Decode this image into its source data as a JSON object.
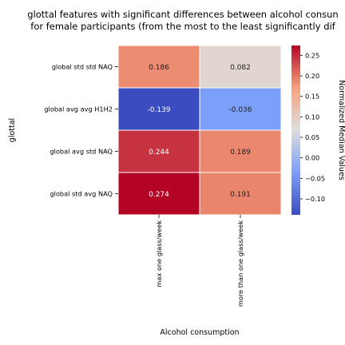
{
  "chart_data": {
    "type": "heatmap",
    "title_lines": [
      "glottal features with significant differences between alcohol consun",
      "for female participants (from the most to the least significantly dif"
    ],
    "xlabel": "Alcohol consumption",
    "ylabel": "glottal",
    "x_categories": [
      "max one glass/week",
      "more than one glass/week"
    ],
    "y_categories": [
      "global std std NAQ",
      "global avg avg H1H2",
      "global avg std NAQ",
      "global std avg NAQ"
    ],
    "values": [
      [
        0.186,
        0.082
      ],
      [
        -0.139,
        -0.036
      ],
      [
        0.244,
        0.189
      ],
      [
        0.274,
        0.191
      ]
    ],
    "cell_labels": [
      [
        "0.186",
        "0.082"
      ],
      [
        "-0.139",
        "-0.036"
      ],
      [
        "0.244",
        "0.189"
      ],
      [
        "0.274",
        "0.191"
      ]
    ],
    "colorbar": {
      "label": "Normalized Median Values",
      "colormap": "coolwarm",
      "vmin": -0.139,
      "vmax": 0.274,
      "ticks": [
        -0.1,
        -0.05,
        0.0,
        0.05,
        0.1,
        0.15,
        0.2,
        0.25
      ],
      "tick_labels": [
        "−0.10",
        "−0.05",
        "0.00",
        "0.05",
        "0.10",
        "0.15",
        "0.20",
        "0.25"
      ]
    }
  }
}
